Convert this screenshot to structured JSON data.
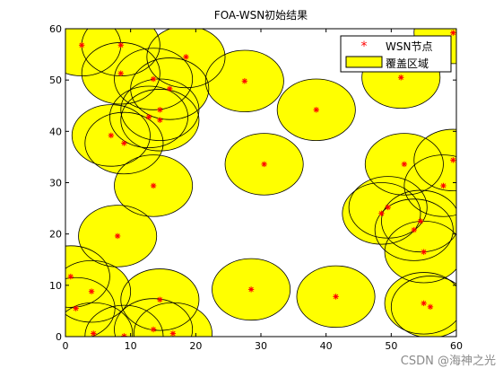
{
  "chart_data": {
    "type": "scatter",
    "title": "FOA-WSN初始结果",
    "xlim": [
      0,
      60
    ],
    "ylim": [
      0,
      60
    ],
    "xticks": [
      0,
      10,
      20,
      30,
      40,
      50,
      60
    ],
    "yticks": [
      0,
      10,
      20,
      30,
      40,
      50,
      60
    ],
    "sensing_radius": 6,
    "grid": false,
    "legend_position": "top-right",
    "legend": {
      "nodes_label": "WSN节点",
      "coverage_label": "覆盖区域"
    },
    "colors": {
      "coverage_fill": "#ffff00",
      "coverage_edge": "#000000",
      "node_marker": "#ff0000"
    },
    "series": [
      {
        "name": "WSN节点",
        "points": [
          [
            2.5,
            56.8
          ],
          [
            8.5,
            56.8
          ],
          [
            18.5,
            54.5
          ],
          [
            8.5,
            51.3
          ],
          [
            13.5,
            50.2
          ],
          [
            16,
            48.3
          ],
          [
            14.5,
            44.2
          ],
          [
            12.8,
            42.8
          ],
          [
            14.5,
            42.2
          ],
          [
            7,
            39.2
          ],
          [
            9,
            37.7
          ],
          [
            27.5,
            49.8
          ],
          [
            38.5,
            44.2
          ],
          [
            30.5,
            33.6
          ],
          [
            13.5,
            29.4
          ],
          [
            8,
            19.6
          ],
          [
            51.5,
            50.5
          ],
          [
            59.5,
            59.2
          ],
          [
            52,
            33.6
          ],
          [
            59.5,
            34.4
          ],
          [
            58,
            29.4
          ],
          [
            49.5,
            25.2
          ],
          [
            48.5,
            24
          ],
          [
            53.5,
            20.8
          ],
          [
            54.5,
            22.5
          ],
          [
            55,
            16.5
          ],
          [
            0.8,
            11.7
          ],
          [
            4,
            8.8
          ],
          [
            1.6,
            5.5
          ],
          [
            4.3,
            0.6
          ],
          [
            9,
            0.1
          ],
          [
            13.5,
            1.4
          ],
          [
            16.5,
            0.6
          ],
          [
            14.5,
            7.2
          ],
          [
            28.5,
            9.2
          ],
          [
            41.5,
            7.8
          ],
          [
            55,
            6.5
          ],
          [
            56,
            5.8
          ]
        ]
      }
    ]
  },
  "watermark": "CSDN @海神之光"
}
